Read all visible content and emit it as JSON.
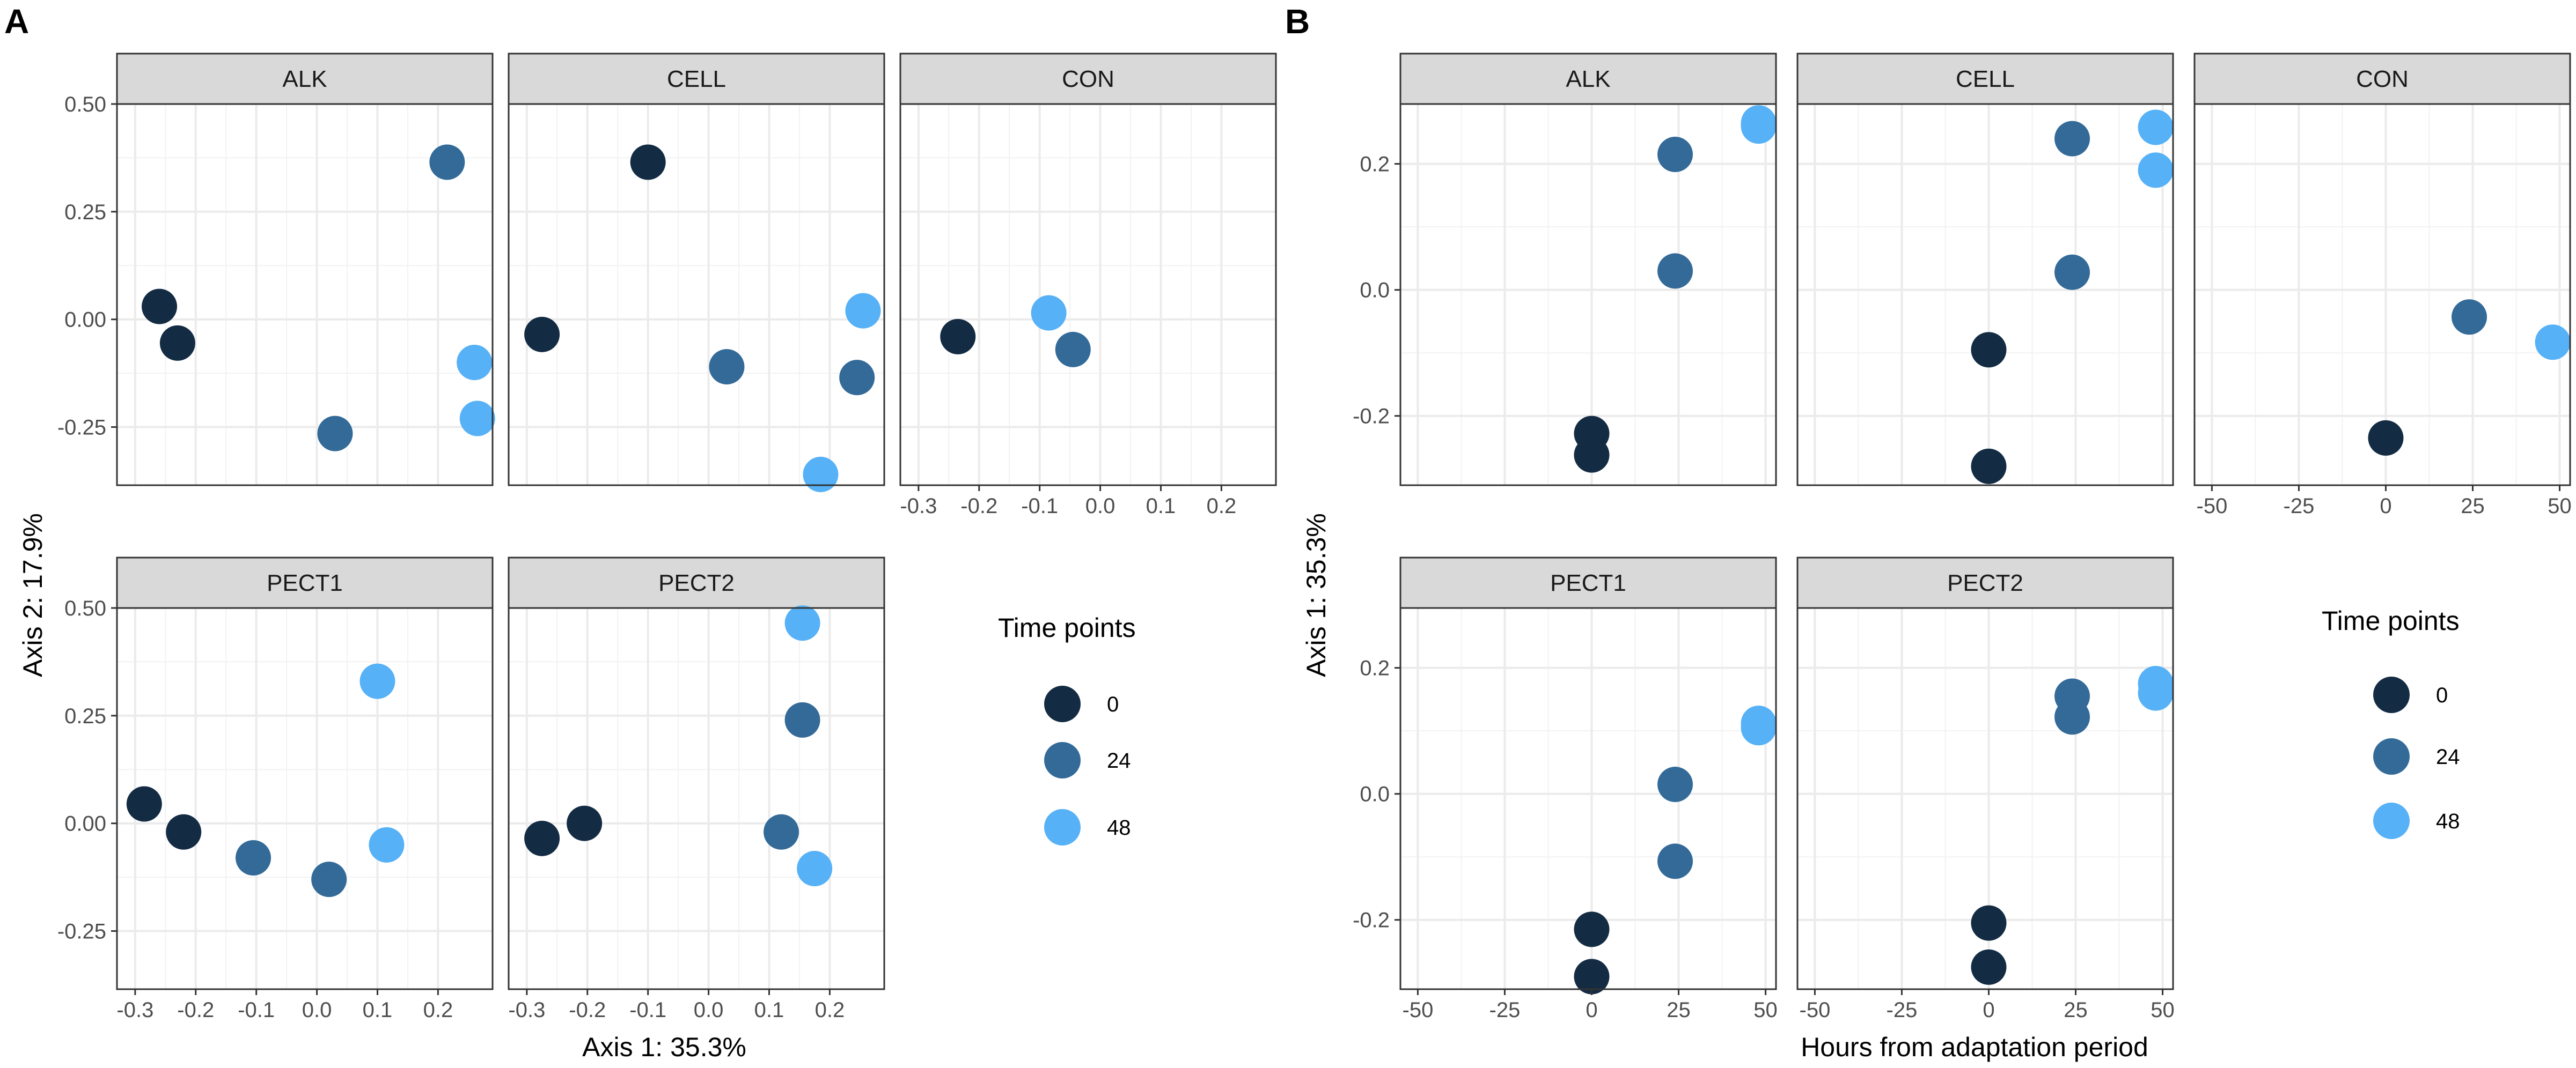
{
  "chart_data": [
    {
      "type": "scatter",
      "panel_label": "A",
      "xlabel": "Axis 1: 35.3%",
      "ylabel": "Axis 2: 17.9%",
      "xlim": [
        -0.33,
        0.29
      ],
      "ylim": [
        -0.385,
        0.5
      ],
      "x_ticks": [
        -0.3,
        -0.2,
        -0.1,
        0.0,
        0.1,
        0.2
      ],
      "x_tick_labels": [
        "-0.3",
        "-0.2",
        "-0.1",
        "0.0",
        "0.1",
        "0.2"
      ],
      "y_ticks": [
        0.5,
        0.25,
        0.0,
        -0.25
      ],
      "y_tick_labels": [
        "0.50",
        "0.25",
        "0.00",
        "-0.25"
      ],
      "legend": {
        "title": "Time points",
        "items": [
          {
            "label": "0",
            "color": "#132b43"
          },
          {
            "label": "24",
            "color": "#336a98"
          },
          {
            "label": "48",
            "color": "#56b1f7"
          }
        ]
      },
      "facets": [
        {
          "name": "ALK",
          "points": [
            {
              "x": -0.26,
              "y": 0.03,
              "time": 0
            },
            {
              "x": -0.23,
              "y": -0.055,
              "time": 0
            },
            {
              "x": 0.215,
              "y": 0.365,
              "time": 24
            },
            {
              "x": 0.03,
              "y": -0.265,
              "time": 24
            },
            {
              "x": 0.26,
              "y": -0.1,
              "time": 48
            },
            {
              "x": 0.265,
              "y": -0.23,
              "time": 48
            }
          ]
        },
        {
          "name": "CELL",
          "points": [
            {
              "x": -0.1,
              "y": 0.365,
              "time": 0
            },
            {
              "x": -0.275,
              "y": -0.035,
              "time": 0
            },
            {
              "x": 0.03,
              "y": -0.11,
              "time": 24
            },
            {
              "x": 0.245,
              "y": -0.135,
              "time": 24
            },
            {
              "x": 0.255,
              "y": 0.02,
              "time": 48
            },
            {
              "x": 0.185,
              "y": -0.36,
              "time": 48
            }
          ]
        },
        {
          "name": "CON",
          "points": [
            {
              "x": -0.235,
              "y": -0.04,
              "time": 0
            },
            {
              "x": -0.045,
              "y": -0.07,
              "time": 24
            },
            {
              "x": -0.085,
              "y": 0.015,
              "time": 48
            }
          ]
        },
        {
          "name": "PECT1",
          "points": [
            {
              "x": -0.285,
              "y": 0.045,
              "time": 0
            },
            {
              "x": -0.22,
              "y": -0.02,
              "time": 0
            },
            {
              "x": -0.105,
              "y": -0.08,
              "time": 24
            },
            {
              "x": 0.02,
              "y": -0.13,
              "time": 24
            },
            {
              "x": 0.1,
              "y": 0.33,
              "time": 48
            },
            {
              "x": 0.115,
              "y": -0.05,
              "time": 48
            }
          ]
        },
        {
          "name": "PECT2",
          "points": [
            {
              "x": -0.275,
              "y": -0.035,
              "time": 0
            },
            {
              "x": -0.205,
              "y": 0.0,
              "time": 0
            },
            {
              "x": 0.155,
              "y": 0.24,
              "time": 24
            },
            {
              "x": 0.12,
              "y": -0.02,
              "time": 24
            },
            {
              "x": 0.155,
              "y": 0.465,
              "time": 48
            },
            {
              "x": 0.175,
              "y": -0.105,
              "time": 48
            }
          ]
        }
      ]
    },
    {
      "type": "scatter",
      "panel_label": "B",
      "xlabel": "Hours from adaptation period",
      "ylabel": "Axis 1: 35.3%",
      "xlim": [
        -55,
        53
      ],
      "ylim": [
        -0.31,
        0.295
      ],
      "x_ticks": [
        -50,
        -25,
        0,
        25,
        50
      ],
      "x_tick_labels": [
        "-50",
        "-25",
        "0",
        "25",
        "50"
      ],
      "y_ticks": [
        0.2,
        0.0,
        -0.2
      ],
      "y_tick_labels": [
        "0.2",
        "0.0",
        "-0.2"
      ],
      "legend": {
        "title": "Time points",
        "items": [
          {
            "label": "0",
            "color": "#132b43"
          },
          {
            "label": "24",
            "color": "#336a98"
          },
          {
            "label": "48",
            "color": "#56b1f7"
          }
        ]
      },
      "facets": [
        {
          "name": "ALK",
          "points": [
            {
              "x": 0,
              "y": -0.228,
              "time": 0
            },
            {
              "x": 0,
              "y": -0.262,
              "time": 0
            },
            {
              "x": 24,
              "y": 0.215,
              "time": 24
            },
            {
              "x": 24,
              "y": 0.03,
              "time": 24
            },
            {
              "x": 48,
              "y": 0.265,
              "time": 48
            },
            {
              "x": 48,
              "y": 0.26,
              "time": 48
            }
          ]
        },
        {
          "name": "CELL",
          "points": [
            {
              "x": 0,
              "y": -0.095,
              "time": 0
            },
            {
              "x": 0,
              "y": -0.28,
              "time": 0
            },
            {
              "x": 24,
              "y": 0.24,
              "time": 24
            },
            {
              "x": 24,
              "y": 0.028,
              "time": 24
            },
            {
              "x": 48,
              "y": 0.258,
              "time": 48
            },
            {
              "x": 48,
              "y": 0.19,
              "time": 48
            }
          ]
        },
        {
          "name": "CON",
          "points": [
            {
              "x": 0,
              "y": -0.235,
              "time": 0
            },
            {
              "x": 24,
              "y": -0.043,
              "time": 24
            },
            {
              "x": 48,
              "y": -0.083,
              "time": 48
            }
          ]
        },
        {
          "name": "PECT1",
          "points": [
            {
              "x": 0,
              "y": -0.215,
              "time": 0
            },
            {
              "x": 0,
              "y": -0.29,
              "time": 0
            },
            {
              "x": 24,
              "y": 0.015,
              "time": 24
            },
            {
              "x": 24,
              "y": -0.107,
              "time": 24
            },
            {
              "x": 48,
              "y": 0.112,
              "time": 48
            },
            {
              "x": 48,
              "y": 0.105,
              "time": 48
            }
          ]
        },
        {
          "name": "PECT2",
          "points": [
            {
              "x": 0,
              "y": -0.205,
              "time": 0
            },
            {
              "x": 0,
              "y": -0.275,
              "time": 0
            },
            {
              "x": 24,
              "y": 0.155,
              "time": 24
            },
            {
              "x": 24,
              "y": 0.122,
              "time": 24
            },
            {
              "x": 48,
              "y": 0.175,
              "time": 48
            },
            {
              "x": 48,
              "y": 0.16,
              "time": 48
            }
          ]
        }
      ]
    }
  ]
}
